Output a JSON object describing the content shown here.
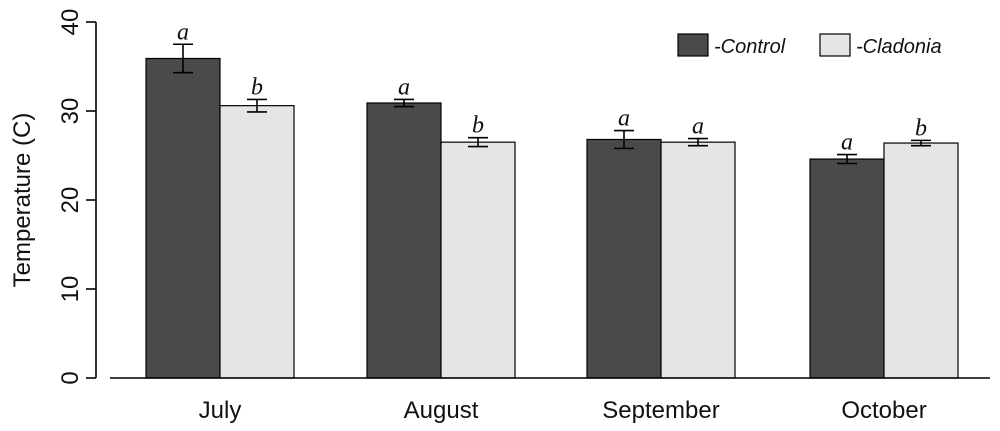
{
  "chart_data": {
    "type": "bar",
    "title": "",
    "xlabel": "",
    "ylabel": "Temperature (C)",
    "ylim": [
      0,
      40
    ],
    "yticks": [
      "0",
      "10",
      "20",
      "30",
      "40"
    ],
    "categories": [
      "July",
      "August",
      "September",
      "October"
    ],
    "series": [
      {
        "name": "-Control",
        "color": "#4a4a4a",
        "values": [
          35.9,
          30.9,
          26.8,
          24.6
        ],
        "errors": [
          1.6,
          0.4,
          1.0,
          0.5
        ],
        "labels": [
          "a",
          "a",
          "a",
          "a"
        ]
      },
      {
        "name": "-Cladonia",
        "color": "#e5e5e5",
        "values": [
          30.6,
          26.5,
          26.5,
          26.4
        ],
        "errors": [
          0.7,
          0.5,
          0.4,
          0.3
        ],
        "labels": [
          "b",
          "b",
          "a",
          "b"
        ]
      }
    ],
    "legend_position": "top-right",
    "grid": false
  }
}
